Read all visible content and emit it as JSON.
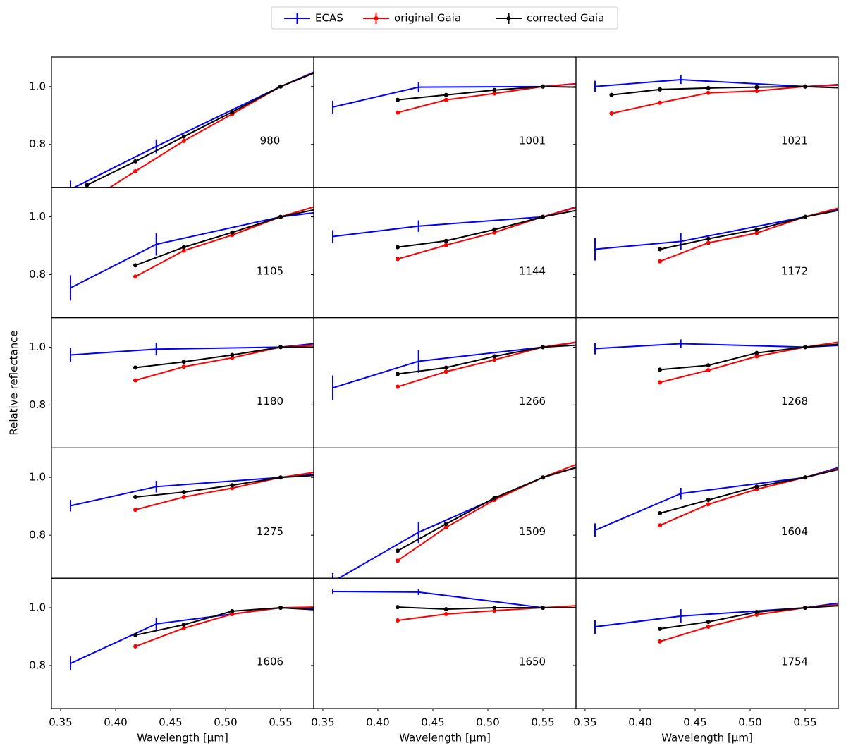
{
  "chart_data": {
    "type": "line",
    "xlabel": "Wavelength [$\\mu$m]",
    "ylabel": "Relative reflectance",
    "xlim": [
      0.3417,
      0.5801
    ],
    "ylim": [
      0.651,
      1.102
    ],
    "xticks": [
      0.35,
      {
        "value": 0.4,
        "label": "0.40"
      },
      0.45,
      {
        "value": 0.5,
        "label": "0.50"
      },
      0.55
    ],
    "yticks": [
      0.8,
      {
        "value": 1,
        "label": "1.0"
      }
    ],
    "series": [
      {
        "name": "ECAS",
        "color": "#0000ff",
        "x": [
          0.359,
          0.437,
          0.55,
          0.701
        ]
      },
      {
        "name": "original Gaia",
        "color": "#ff0000",
        "x": [
          0.374,
          0.418,
          0.462,
          0.506,
          0.55,
          0.594
        ]
      },
      {
        "name": "corrected Gaia",
        "color": "#000000",
        "x": [
          0.374,
          0.418,
          0.462,
          0.506,
          0.55,
          0.594
        ]
      }
    ],
    "panels": [
      {
        "label": "980",
        "series": [
          {
            "values": [
              0.644,
              0.793,
              1.0,
              1.25
            ],
            "errors": [
              0.03,
              0.024,
              0,
              null
            ]
          },
          {
            "values": [
              0.6,
              0.707,
              0.812,
              0.905,
              1.0,
              1.07
            ]
          },
          {
            "values": [
              0.659,
              0.741,
              0.827,
              0.912,
              1.0,
              1.068
            ]
          }
        ]
      },
      {
        "label": "1001",
        "series": [
          {
            "values": [
              0.929,
              0.998,
              1.0,
              1.05
            ],
            "errors": [
              0.022,
              0.017,
              0,
              null
            ]
          },
          {
            "values": [
              null,
              0.91,
              0.954,
              0.976,
              1.0,
              1.013
            ]
          },
          {
            "values": [
              null,
              0.954,
              0.971,
              0.988,
              1.0,
              0.997
            ]
          }
        ]
      },
      {
        "label": "1021",
        "series": [
          {
            "values": [
              1.0,
              1.024,
              1.0,
              1.035
            ],
            "errors": [
              0.02,
              0.015,
              0,
              null
            ]
          },
          {
            "values": [
              0.907,
              0.944,
              0.978,
              0.985,
              1.0,
              1.007
            ]
          },
          {
            "values": [
              0.971,
              0.99,
              0.995,
              0.998,
              1.0,
              0.994
            ]
          }
        ]
      },
      {
        "label": "1105",
        "series": [
          {
            "values": [
              0.754,
              0.905,
              1.0,
              1.07
            ],
            "errors": [
              0.044,
              0.039,
              0,
              null
            ]
          },
          {
            "values": [
              null,
              0.793,
              0.883,
              0.937,
              1.0,
              1.05
            ]
          },
          {
            "values": [
              null,
              0.832,
              0.895,
              0.946,
              1.0,
              1.035
            ]
          }
        ]
      },
      {
        "label": "1144",
        "series": [
          {
            "values": [
              0.932,
              0.968,
              1.0,
              1.17
            ],
            "errors": [
              0.022,
              0.02,
              0,
              null
            ]
          },
          {
            "values": [
              null,
              0.854,
              0.902,
              0.946,
              1.0,
              1.047
            ]
          },
          {
            "values": [
              null,
              0.895,
              0.917,
              0.956,
              1.0,
              1.032
            ]
          }
        ]
      },
      {
        "label": "1172",
        "series": [
          {
            "values": [
              0.888,
              0.915,
              1.0,
              1.13
            ],
            "errors": [
              0.039,
              0.029,
              0,
              null
            ]
          },
          {
            "values": [
              null,
              0.846,
              0.91,
              0.944,
              1.0,
              1.044
            ]
          },
          {
            "values": [
              null,
              0.888,
              0.924,
              0.956,
              1.0,
              1.032
            ]
          }
        ]
      },
      {
        "label": "1180",
        "series": [
          {
            "values": [
              0.973,
              0.993,
              1.0,
              1.06
            ],
            "errors": [
              0.024,
              0.022,
              0,
              null
            ]
          },
          {
            "values": [
              null,
              0.885,
              0.932,
              0.963,
              1.0,
              1.01
            ]
          },
          {
            "values": [
              null,
              0.929,
              0.949,
              0.973,
              1.0,
              1.0
            ]
          }
        ]
      },
      {
        "label": "1266",
        "series": [
          {
            "values": [
              0.859,
              0.951,
              1.0,
              1.08
            ],
            "errors": [
              0.043,
              0.04,
              0,
              null
            ]
          },
          {
            "values": [
              null,
              0.863,
              0.915,
              0.956,
              1.0,
              1.025
            ]
          },
          {
            "values": [
              null,
              0.907,
              0.929,
              0.968,
              1.0,
              1.01
            ]
          }
        ]
      },
      {
        "label": "1268",
        "series": [
          {
            "values": [
              0.995,
              1.012,
              1.0,
              1.03
            ],
            "errors": [
              0.02,
              0.015,
              0,
              null
            ]
          },
          {
            "values": [
              null,
              0.878,
              0.92,
              0.968,
              1.0,
              1.025
            ]
          },
          {
            "values": [
              null,
              0.922,
              0.937,
              0.98,
              1.0,
              1.015
            ]
          }
        ]
      },
      {
        "label": "1275",
        "series": [
          {
            "values": [
              0.902,
              0.968,
              1.0,
              1.05
            ],
            "errors": [
              0.02,
              0.02,
              0,
              null
            ]
          },
          {
            "values": [
              null,
              0.888,
              0.932,
              0.963,
              1.0,
              1.025
            ]
          },
          {
            "values": [
              null,
              0.932,
              0.949,
              0.973,
              1.0,
              1.01
            ]
          }
        ]
      },
      {
        "label": "1509",
        "series": [
          {
            "values": [
              0.639,
              0.81,
              1.0,
              1.17
            ],
            "errors": [
              0.03,
              0.037,
              0,
              null
            ]
          },
          {
            "values": [
              null,
              0.712,
              0.827,
              0.922,
              1.0,
              1.065
            ]
          },
          {
            "values": [
              null,
              0.746,
              0.839,
              0.929,
              1.0,
              1.05
            ]
          }
        ]
      },
      {
        "label": "1604",
        "series": [
          {
            "values": [
              0.817,
              0.944,
              1.0,
              1.17
            ],
            "errors": [
              0.024,
              0.02,
              0,
              null
            ]
          },
          {
            "values": [
              null,
              0.834,
              0.907,
              0.959,
              1.0,
              1.044
            ]
          },
          {
            "values": [
              null,
              0.876,
              0.922,
              0.968,
              1.0,
              1.04
            ]
          }
        ]
      },
      {
        "label": "1606",
        "series": [
          {
            "values": [
              0.807,
              0.944,
              1.0,
              0.99
            ],
            "errors": [
              0.024,
              0.022,
              0,
              null
            ]
          },
          {
            "values": [
              null,
              0.866,
              0.929,
              0.978,
              1.0,
              1.003
            ]
          },
          {
            "values": [
              null,
              0.905,
              0.941,
              0.988,
              1.0,
              0.99
            ]
          }
        ]
      },
      {
        "label": "1650",
        "series": [
          {
            "values": [
              1.056,
              1.054,
              1.0,
              1.0
            ],
            "errors": [
              0.01,
              0.01,
              0,
              null
            ]
          },
          {
            "values": [
              null,
              0.956,
              0.978,
              0.99,
              1.0,
              1.01
            ]
          },
          {
            "values": [
              null,
              1.002,
              0.995,
              1.0,
              1.0,
              1.0
            ]
          }
        ]
      },
      {
        "label": "1754",
        "series": [
          {
            "values": [
              0.934,
              0.971,
              1.0,
              1.08
            ],
            "errors": [
              0.024,
              0.024,
              0,
              null
            ]
          },
          {
            "values": [
              null,
              0.883,
              0.934,
              0.976,
              1.0,
              1.015
            ]
          },
          {
            "values": [
              null,
              0.927,
              0.951,
              0.985,
              1.0,
              1.01
            ]
          }
        ]
      }
    ]
  }
}
